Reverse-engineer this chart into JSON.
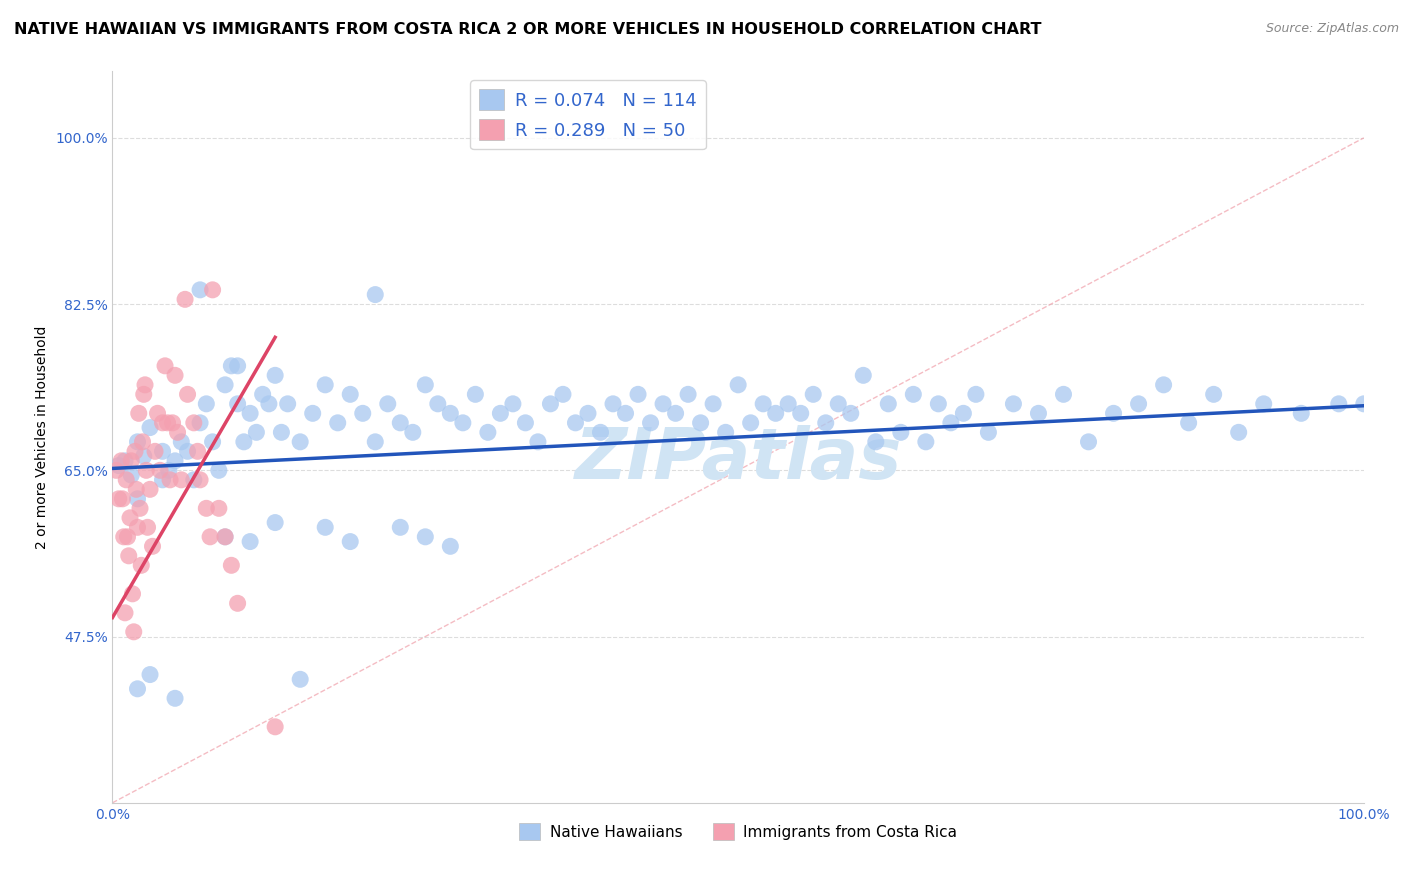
{
  "title": "NATIVE HAWAIIAN VS IMMIGRANTS FROM COSTA RICA 2 OR MORE VEHICLES IN HOUSEHOLD CORRELATION CHART",
  "source": "Source: ZipAtlas.com",
  "ylabel": "2 or more Vehicles in Household",
  "xlim": [
    0.0,
    1.0
  ],
  "ylim": [
    0.3,
    1.07
  ],
  "yticks": [
    0.475,
    0.65,
    0.825,
    1.0
  ],
  "ytick_labels": [
    "47.5%",
    "65.0%",
    "82.5%",
    "100.0%"
  ],
  "xticks": [
    0.0,
    0.25,
    0.5,
    0.75,
    1.0
  ],
  "xtick_labels": [
    "0.0%",
    "",
    "",
    "",
    "100.0%"
  ],
  "legend_r1": "R = 0.074",
  "legend_n1": "N = 114",
  "legend_r2": "R = 0.289",
  "legend_n2": "N = 50",
  "blue_color": "#a8c8f0",
  "pink_color": "#f4a0b0",
  "blue_line_color": "#2255bb",
  "pink_line_color": "#dd4466",
  "watermark": "ZIPatlas",
  "watermark_color": "#d0e4f4",
  "watermark_fontsize": 52,
  "title_fontsize": 11.5,
  "label_fontsize": 10,
  "tick_fontsize": 10,
  "blue_x": [
    0.005,
    0.01,
    0.015,
    0.02,
    0.02,
    0.025,
    0.03,
    0.04,
    0.04,
    0.045,
    0.05,
    0.055,
    0.06,
    0.065,
    0.07,
    0.075,
    0.08,
    0.085,
    0.09,
    0.095,
    0.1,
    0.1,
    0.105,
    0.11,
    0.115,
    0.12,
    0.125,
    0.13,
    0.135,
    0.14,
    0.15,
    0.16,
    0.17,
    0.18,
    0.19,
    0.2,
    0.21,
    0.22,
    0.23,
    0.24,
    0.25,
    0.26,
    0.27,
    0.28,
    0.29,
    0.3,
    0.31,
    0.32,
    0.33,
    0.34,
    0.35,
    0.36,
    0.37,
    0.38,
    0.39,
    0.4,
    0.41,
    0.42,
    0.43,
    0.44,
    0.45,
    0.46,
    0.47,
    0.48,
    0.49,
    0.5,
    0.51,
    0.52,
    0.53,
    0.54,
    0.55,
    0.56,
    0.57,
    0.58,
    0.59,
    0.6,
    0.61,
    0.62,
    0.63,
    0.64,
    0.65,
    0.66,
    0.67,
    0.68,
    0.69,
    0.7,
    0.72,
    0.74,
    0.76,
    0.78,
    0.8,
    0.82,
    0.84,
    0.86,
    0.88,
    0.9,
    0.92,
    0.95,
    0.98,
    1.0,
    0.02,
    0.03,
    0.05,
    0.07,
    0.09,
    0.11,
    0.13,
    0.15,
    0.17,
    0.19,
    0.21,
    0.23,
    0.25,
    0.27
  ],
  "blue_y": [
    0.655,
    0.66,
    0.645,
    0.68,
    0.62,
    0.665,
    0.695,
    0.64,
    0.67,
    0.65,
    0.66,
    0.68,
    0.67,
    0.64,
    0.7,
    0.72,
    0.68,
    0.65,
    0.74,
    0.76,
    0.72,
    0.76,
    0.68,
    0.71,
    0.69,
    0.73,
    0.72,
    0.75,
    0.69,
    0.72,
    0.68,
    0.71,
    0.74,
    0.7,
    0.73,
    0.71,
    0.68,
    0.72,
    0.7,
    0.69,
    0.74,
    0.72,
    0.71,
    0.7,
    0.73,
    0.69,
    0.71,
    0.72,
    0.7,
    0.68,
    0.72,
    0.73,
    0.7,
    0.71,
    0.69,
    0.72,
    0.71,
    0.73,
    0.7,
    0.72,
    0.71,
    0.73,
    0.7,
    0.72,
    0.69,
    0.74,
    0.7,
    0.72,
    0.71,
    0.72,
    0.71,
    0.73,
    0.7,
    0.72,
    0.71,
    0.75,
    0.68,
    0.72,
    0.69,
    0.73,
    0.68,
    0.72,
    0.7,
    0.71,
    0.73,
    0.69,
    0.72,
    0.71,
    0.73,
    0.68,
    0.71,
    0.72,
    0.74,
    0.7,
    0.73,
    0.69,
    0.72,
    0.71,
    0.72,
    0.72,
    0.42,
    0.435,
    0.41,
    0.84,
    0.58,
    0.575,
    0.595,
    0.43,
    0.59,
    0.575,
    0.835,
    0.59,
    0.58,
    0.57
  ],
  "pink_x": [
    0.003,
    0.005,
    0.007,
    0.008,
    0.009,
    0.01,
    0.011,
    0.012,
    0.013,
    0.014,
    0.015,
    0.016,
    0.017,
    0.018,
    0.019,
    0.02,
    0.021,
    0.022,
    0.023,
    0.024,
    0.025,
    0.026,
    0.027,
    0.028,
    0.03,
    0.032,
    0.034,
    0.036,
    0.038,
    0.04,
    0.042,
    0.044,
    0.046,
    0.048,
    0.05,
    0.052,
    0.055,
    0.058,
    0.06,
    0.065,
    0.068,
    0.07,
    0.075,
    0.078,
    0.08,
    0.085,
    0.09,
    0.095,
    0.1,
    0.13
  ],
  "pink_y": [
    0.65,
    0.62,
    0.66,
    0.62,
    0.58,
    0.5,
    0.64,
    0.58,
    0.56,
    0.6,
    0.66,
    0.52,
    0.48,
    0.67,
    0.63,
    0.59,
    0.71,
    0.61,
    0.55,
    0.68,
    0.73,
    0.74,
    0.65,
    0.59,
    0.63,
    0.57,
    0.67,
    0.71,
    0.65,
    0.7,
    0.76,
    0.7,
    0.64,
    0.7,
    0.75,
    0.69,
    0.64,
    0.83,
    0.73,
    0.7,
    0.67,
    0.64,
    0.61,
    0.58,
    0.84,
    0.61,
    0.58,
    0.55,
    0.51,
    0.38
  ],
  "blue_trend": [
    0.0,
    1.0,
    0.652,
    0.718
  ],
  "pink_trend": [
    0.0,
    0.13,
    0.495,
    0.79
  ],
  "diag_line": [
    0.0,
    1.0,
    0.3,
    1.0
  ]
}
